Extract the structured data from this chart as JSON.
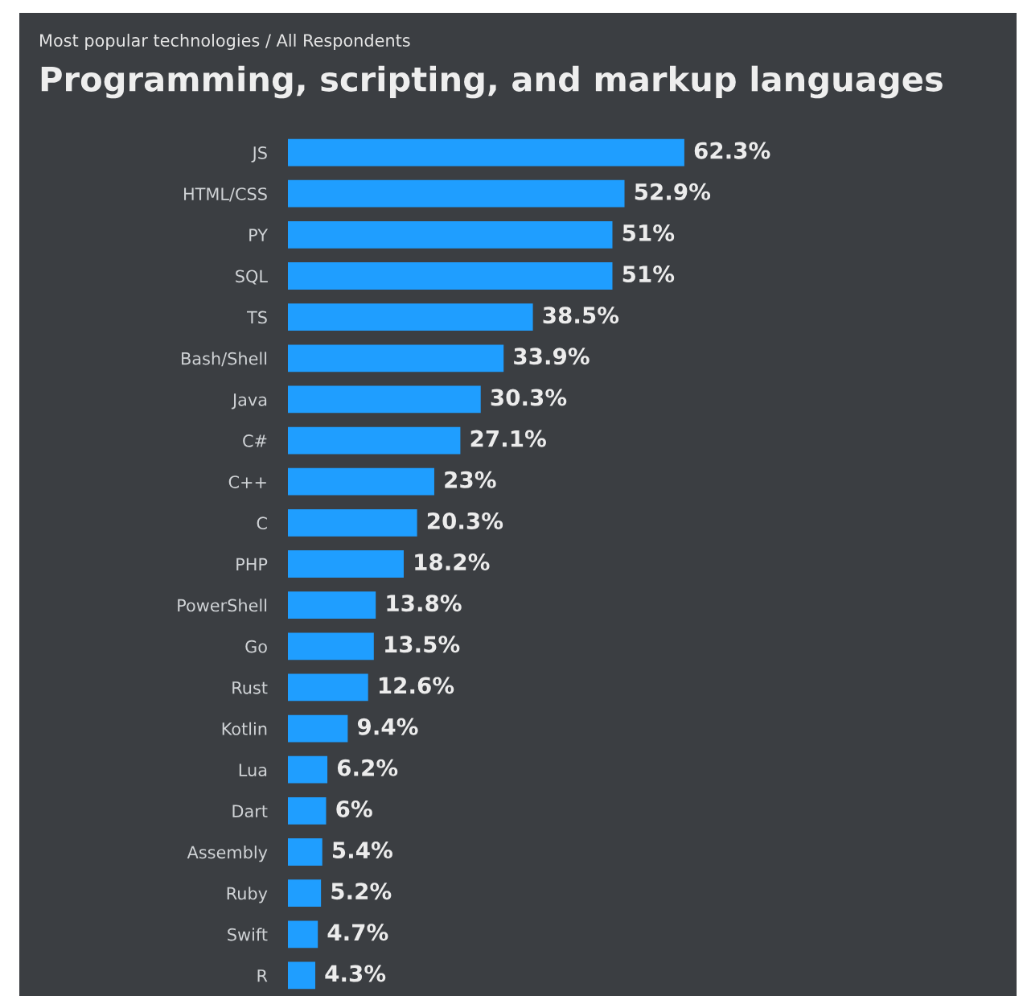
{
  "chart_data": {
    "type": "bar",
    "orientation": "horizontal",
    "subtitle": "Most popular technologies / All Respondents",
    "title": "Programming, scripting, and markup languages",
    "categories": [
      "JS",
      "HTML/CSS",
      "PY",
      "SQL",
      "TS",
      "Bash/Shell",
      "Java",
      "C#",
      "C++",
      "C",
      "PHP",
      "PowerShell",
      "Go",
      "Rust",
      "Kotlin",
      "Lua",
      "Dart",
      "Assembly",
      "Ruby",
      "Swift",
      "R"
    ],
    "values": [
      62.3,
      52.9,
      51,
      51,
      38.5,
      33.9,
      30.3,
      27.1,
      23,
      20.3,
      18.2,
      13.8,
      13.5,
      12.6,
      9.4,
      6.2,
      6,
      5.4,
      5.2,
      4.7,
      4.3
    ],
    "value_labels": [
      "62.3%",
      "52.9%",
      "51%",
      "51%",
      "38.5%",
      "33.9%",
      "30.3%",
      "27.1%",
      "23%",
      "20.3%",
      "18.2%",
      "13.8%",
      "13.5%",
      "12.6%",
      "9.4%",
      "6.2%",
      "6%",
      "5.4%",
      "5.2%",
      "4.7%",
      "4.3%"
    ],
    "color": "#1f9eff",
    "tick_labels": "y"
  }
}
